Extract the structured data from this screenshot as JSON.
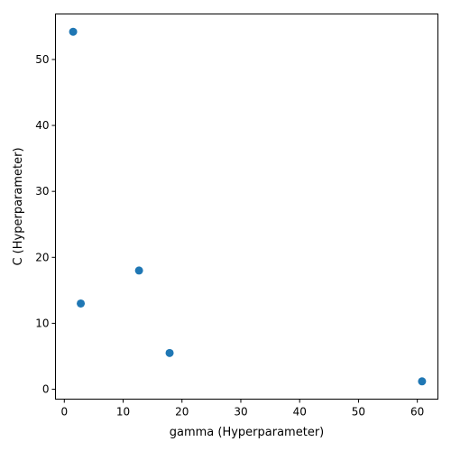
{
  "chart_data": {
    "type": "scatter",
    "title": "",
    "xlabel": "gamma (Hyperparameter)",
    "ylabel": "C (Hyperparameter)",
    "xlim": [
      -1.5,
      63.5
    ],
    "ylim": [
      -1.5,
      56.9
    ],
    "x_ticks": [
      0,
      10,
      20,
      30,
      40,
      50,
      60
    ],
    "y_ticks": [
      0,
      10,
      20,
      30,
      40,
      50
    ],
    "grid": false,
    "marker_color": "#1f77b4",
    "series": [
      {
        "points": [
          {
            "x": 1.5,
            "y": 54.2
          },
          {
            "x": 2.8,
            "y": 13.0
          },
          {
            "x": 12.7,
            "y": 18.0
          },
          {
            "x": 17.9,
            "y": 5.5
          },
          {
            "x": 60.8,
            "y": 1.2
          }
        ]
      }
    ]
  }
}
